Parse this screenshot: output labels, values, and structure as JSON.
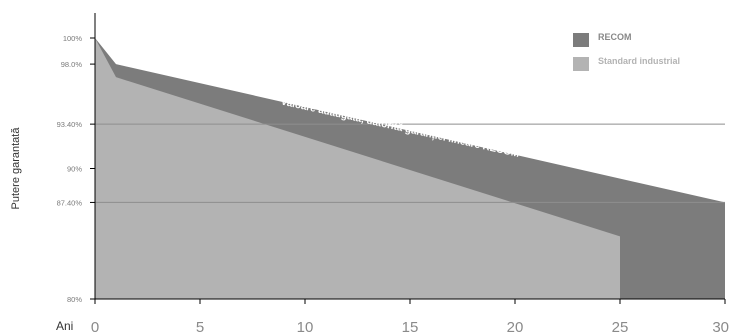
{
  "chart_data": {
    "type": "area",
    "xlabel": "Ani",
    "ylabel": "Putere garantată",
    "xlim": [
      0,
      30
    ],
    "ylim": [
      80,
      100
    ],
    "x_ticks": [
      0,
      5,
      10,
      15,
      20,
      25,
      30
    ],
    "y_ticks": [
      {
        "value": 100,
        "label": "100%"
      },
      {
        "value": 98,
        "label": "98.0%"
      },
      {
        "value": 93.4,
        "label": "93.40%"
      },
      {
        "value": 90,
        "label": "90%"
      },
      {
        "value": 87.4,
        "label": "87.40%"
      },
      {
        "value": 80,
        "label": "80%"
      }
    ],
    "gridlines_y": [
      93.4,
      87.4
    ],
    "series": [
      {
        "name": "RECOM",
        "color": "#7c7c7c",
        "points": [
          [
            0,
            100
          ],
          [
            1,
            98
          ],
          [
            30,
            87.4
          ]
        ]
      },
      {
        "name": "Standard industrial",
        "color": "#b3b3b3",
        "points": [
          [
            0,
            100
          ],
          [
            1,
            97
          ],
          [
            25,
            84.8
          ]
        ]
      }
    ],
    "legend": [
      {
        "label": "RECOM",
        "color": "#7c7c7c",
        "text_color": "#888888"
      },
      {
        "label": "Standard industrial",
        "color": "#b3b3b3",
        "text_color": "#b3b3b3"
      }
    ],
    "legend_position": "top-right",
    "annotation": {
      "text": "Valoare adăugată, datorită garanției lineare RECOM",
      "x": 14.5,
      "y": 92.9
    }
  }
}
